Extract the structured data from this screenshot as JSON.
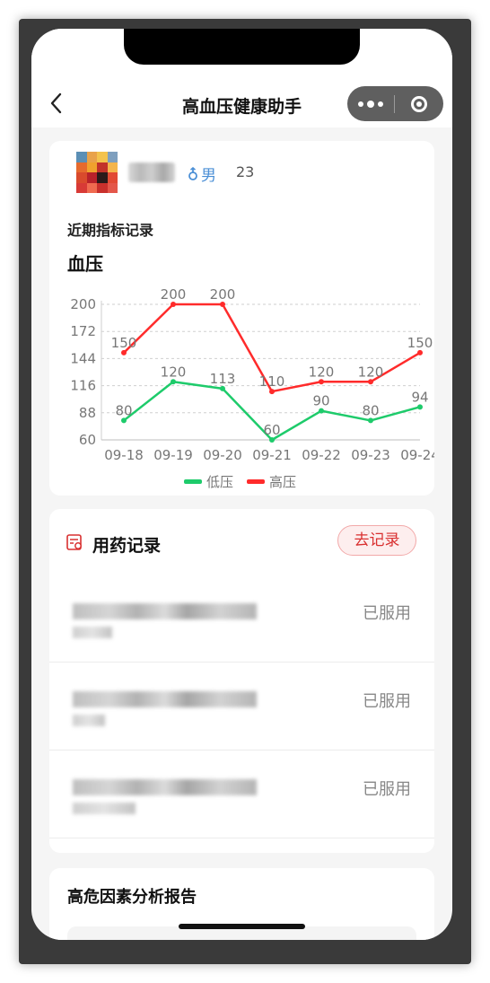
{
  "header": {
    "title": "高血压健康助手"
  },
  "profile": {
    "gender": "男",
    "age": "23"
  },
  "records": {
    "section_label": "近期指标记录",
    "chart_title": "血压"
  },
  "chart_data": {
    "type": "line",
    "title": "血压",
    "categories": [
      "09-18",
      "09-19",
      "09-20",
      "09-21",
      "09-22",
      "09-23",
      "09-24"
    ],
    "series": [
      {
        "name": "低压",
        "color": "#1ecb6b",
        "values": [
          80,
          120,
          113,
          60,
          90,
          80,
          94
        ]
      },
      {
        "name": "高压",
        "color": "#ff2b2b",
        "values": [
          150,
          200,
          200,
          110,
          120,
          120,
          150
        ]
      }
    ],
    "yticks": [
      60,
      88,
      116,
      144,
      172,
      200
    ],
    "ylim": [
      60,
      200
    ],
    "grid": true,
    "legend": "bottom-center"
  },
  "medication": {
    "title": "用药记录",
    "record_button": "去记录",
    "items": [
      {
        "status": "已服用"
      },
      {
        "status": "已服用"
      },
      {
        "status": "已服用"
      }
    ]
  },
  "risk": {
    "title": "高危因素分析报告"
  },
  "icons": {
    "back": "chevron-left-icon",
    "more": "more-dots-icon",
    "close": "target-circle-icon",
    "gender": "male-icon",
    "medication": "pill-record-icon"
  },
  "colors": {
    "accent": "#d93030",
    "gender": "#4b8fd6",
    "low_pressure": "#1ecb6b",
    "high_pressure": "#ff2b2b"
  }
}
